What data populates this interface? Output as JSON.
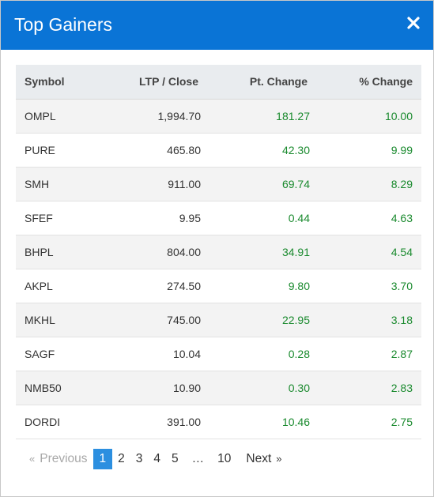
{
  "modal": {
    "title": "Top Gainers",
    "close_icon": "close-icon",
    "header_color": "#0a74d6"
  },
  "table": {
    "headers": {
      "symbol": "Symbol",
      "ltp": "LTP / Close",
      "pt_change": "Pt. Change",
      "pct_change": "% Change"
    },
    "rows": [
      {
        "symbol": "OMPL",
        "ltp": "1,994.70",
        "pt_change": "181.27",
        "pct_change": "10.00"
      },
      {
        "symbol": "PURE",
        "ltp": "465.80",
        "pt_change": "42.30",
        "pct_change": "9.99"
      },
      {
        "symbol": "SMH",
        "ltp": "911.00",
        "pt_change": "69.74",
        "pct_change": "8.29"
      },
      {
        "symbol": "SFEF",
        "ltp": "9.95",
        "pt_change": "0.44",
        "pct_change": "4.63"
      },
      {
        "symbol": "BHPL",
        "ltp": "804.00",
        "pt_change": "34.91",
        "pct_change": "4.54"
      },
      {
        "symbol": "AKPL",
        "ltp": "274.50",
        "pt_change": "9.80",
        "pct_change": "3.70"
      },
      {
        "symbol": "MKHL",
        "ltp": "745.00",
        "pt_change": "22.95",
        "pct_change": "3.18"
      },
      {
        "symbol": "SAGF",
        "ltp": "10.04",
        "pt_change": "0.28",
        "pct_change": "2.87"
      },
      {
        "symbol": "NMB50",
        "ltp": "10.90",
        "pt_change": "0.30",
        "pct_change": "2.83"
      },
      {
        "symbol": "DORDI",
        "ltp": "391.00",
        "pt_change": "10.46",
        "pct_change": "2.75"
      }
    ],
    "gain_color": "#1a8a2e"
  },
  "pagination": {
    "prev_arrow": "«",
    "prev_label": "Previous",
    "pages": [
      "1",
      "2",
      "3",
      "4",
      "5"
    ],
    "ellipsis": "…",
    "last_page": "10",
    "next_label": "Next",
    "next_arrow": "»",
    "active_page": "1",
    "active_color": "#2c8fe0"
  }
}
